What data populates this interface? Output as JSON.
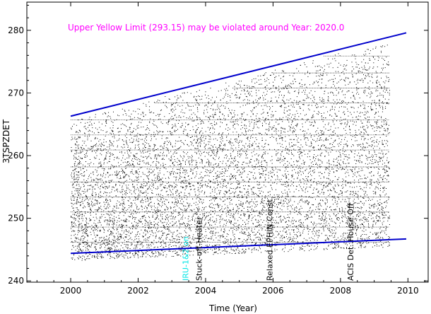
{
  "chart_data": {
    "type": "scatter",
    "title": "",
    "annotation": "Upper Yellow  Limit (293.15) may be violated around Year: 2020.0",
    "xlabel": "Time (Year)",
    "ylabel": "3TSPZDET",
    "xlim": [
      1998.7,
      2010.6
    ],
    "ylim": [
      239.8,
      284.5
    ],
    "x_ticks": [
      2000,
      2002,
      2004,
      2006,
      2008,
      2010
    ],
    "y_ticks": [
      240,
      250,
      260,
      270,
      280
    ],
    "grid": false,
    "data_span": {
      "x_start": 2000.0,
      "x_end": 2009.45
    },
    "upper_trend": {
      "x": [
        2000.0,
        2009.95
      ],
      "y": [
        266.3,
        279.6
      ]
    },
    "lower_trend": {
      "x": [
        2000.0,
        2009.95
      ],
      "y": [
        244.4,
        246.7
      ]
    },
    "level_lines": [
      {
        "y": 246.2,
        "x0": 2000.0,
        "x1": 2009.45
      },
      {
        "y": 248.6,
        "x0": 2000.0,
        "x1": 2009.45
      },
      {
        "y": 251.0,
        "x0": 2000.0,
        "x1": 2009.45
      },
      {
        "y": 253.4,
        "x0": 2000.0,
        "x1": 2009.45
      },
      {
        "y": 255.8,
        "x0": 2000.0,
        "x1": 2009.45
      },
      {
        "y": 258.2,
        "x0": 2000.0,
        "x1": 2009.45
      },
      {
        "y": 260.9,
        "x0": 2000.0,
        "x1": 2009.45
      },
      {
        "y": 263.3,
        "x0": 2000.0,
        "x1": 2009.45
      },
      {
        "y": 265.7,
        "x0": 2000.0,
        "x1": 2009.45
      },
      {
        "y": 268.4,
        "x0": 2002.5,
        "x1": 2009.45
      },
      {
        "y": 270.8,
        "x0": 2004.8,
        "x1": 2009.45
      },
      {
        "y": 273.2,
        "x0": 2006.0,
        "x1": 2009.45
      },
      {
        "y": 275.9,
        "x0": 2007.5,
        "x1": 2009.45
      }
    ],
    "events": [
      {
        "label": "IRU-1&2 on",
        "x": 2003.4,
        "color": "#00e5e5"
      },
      {
        "label": "Stuck-off-Heater",
        "x": 2003.8,
        "color": "#000000"
      },
      {
        "label": "Relaxed EPHIN Const.",
        "x": 2005.9,
        "color": "#000000"
      },
      {
        "label": "ACIS Det. House Off",
        "x": 2008.3,
        "color": "#000000"
      }
    ],
    "colors": {
      "points": "#000000",
      "trend": "#0000cc",
      "annotation": "#ff00ff"
    }
  }
}
